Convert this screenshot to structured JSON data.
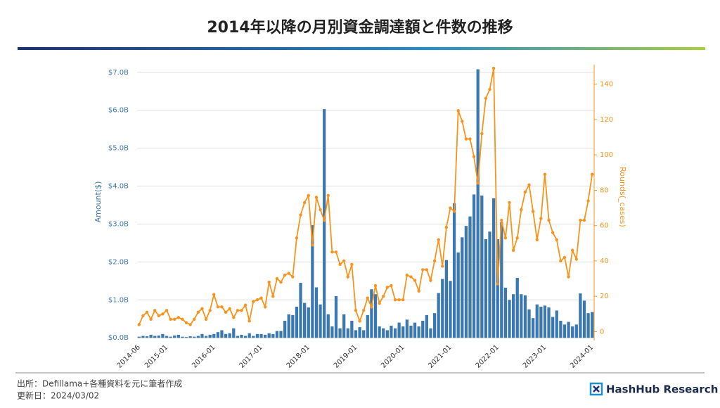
{
  "chart_data": {
    "type": "bar-line",
    "title": "2014年以降の月別資金調達額と件数の推移",
    "y_label": "Amount($)",
    "y2_label": "Rounds(_cases)",
    "categories": [
      "2014-06",
      null,
      null,
      null,
      null,
      null,
      null,
      "2015-01",
      null,
      null,
      null,
      null,
      null,
      null,
      null,
      null,
      null,
      null,
      null,
      "2016-01",
      null,
      null,
      null,
      null,
      null,
      null,
      null,
      null,
      null,
      null,
      null,
      "2017-01",
      null,
      null,
      null,
      null,
      null,
      null,
      null,
      null,
      null,
      null,
      null,
      "2018-01",
      null,
      null,
      null,
      null,
      null,
      null,
      null,
      null,
      null,
      null,
      null,
      "2019-01",
      null,
      null,
      null,
      null,
      null,
      null,
      null,
      null,
      null,
      null,
      null,
      "2020-01",
      null,
      null,
      null,
      null,
      null,
      null,
      null,
      null,
      null,
      null,
      null,
      "2021-01",
      null,
      null,
      null,
      null,
      null,
      null,
      null,
      null,
      null,
      null,
      null,
      "2022-01",
      null,
      null,
      null,
      null,
      null,
      null,
      null,
      null,
      null,
      null,
      null,
      "2023-01",
      null,
      null,
      null,
      null,
      null,
      null,
      null,
      null,
      null,
      null,
      null,
      "2024-01"
    ],
    "series": [
      {
        "color": "#3b78b1",
        "values": [
          0.03,
          0.05,
          0.04,
          0.08,
          0.05,
          0.06,
          0.1,
          0.05,
          0.03,
          0.06,
          0.08,
          0.03,
          0.02,
          0.04,
          0.03,
          0.05,
          0.1,
          0.05,
          0.08,
          0.1,
          0.15,
          0.2,
          0.1,
          0.12,
          0.25,
          0.05,
          0.08,
          0.05,
          0.12,
          0.05,
          0.1,
          0.1,
          0.08,
          0.12,
          0.1,
          0.18,
          0.18,
          0.45,
          0.62,
          0.6,
          0.82,
          1.45,
          0.92,
          0.8,
          2.97,
          1.33,
          0.88,
          6.03,
          0.62,
          0.3,
          1.1,
          0.25,
          0.62,
          0.25,
          0.45,
          0.2,
          0.28,
          0.2,
          0.6,
          1.28,
          1.15,
          0.3,
          0.25,
          0.2,
          0.32,
          0.25,
          0.4,
          0.3,
          0.48,
          0.32,
          0.4,
          0.3,
          0.45,
          0.6,
          0.25,
          0.65,
          1.18,
          1.55,
          2.05,
          1.5,
          3.55,
          2.25,
          2.65,
          2.95,
          3.2,
          3.78,
          7.08,
          3.75,
          2.6,
          2.8,
          3.68,
          2.6,
          3.05,
          1.32,
          1.0,
          1.15,
          1.58,
          1.15,
          1.12,
          0.75,
          0.52,
          0.88,
          0.82,
          0.85,
          0.8,
          0.55,
          0.72,
          0.45,
          0.35,
          0.42,
          0.3,
          0.35,
          1.17,
          0.98,
          0.65,
          0.68
        ]
      },
      {
        "color": "#f7941d",
        "axis": "y2",
        "values": [
          4,
          9,
          11,
          7,
          12,
          9,
          10,
          12,
          7,
          7,
          8,
          7,
          5,
          4,
          7,
          11,
          13,
          7,
          12,
          21,
          14,
          14,
          11,
          13,
          8,
          12,
          12,
          15,
          6,
          17,
          18,
          19,
          14,
          28,
          20,
          30,
          28,
          32,
          33,
          31,
          53,
          66,
          73,
          77,
          49,
          76,
          69,
          63,
          77,
          45,
          45,
          38,
          40,
          31,
          38,
          12,
          6,
          12,
          19,
          14,
          26,
          16,
          20,
          25,
          26,
          18,
          18,
          18,
          32,
          31,
          29,
          23,
          35,
          35,
          29,
          40,
          52,
          37,
          59,
          70,
          68,
          125,
          119,
          109,
          109,
          99,
          84,
          112,
          132,
          137,
          149,
          27,
          63,
          53,
          73,
          46,
          53,
          69,
          79,
          83,
          68,
          52,
          64,
          89,
          63,
          56,
          52,
          40,
          42,
          31,
          46,
          41,
          63,
          63,
          74,
          89
        ]
      }
    ],
    "ylim": [
      -0.07,
      7.2
    ],
    "yticks": [
      {
        "value": 0,
        "label": "$0.0B"
      },
      {
        "value": 1,
        "label": "$1.0B"
      },
      {
        "value": 2,
        "label": "$2.0B"
      },
      {
        "value": 3,
        "label": "$3.0B"
      },
      {
        "value": 4,
        "label": "$4.0B"
      },
      {
        "value": 5,
        "label": "$5.0B"
      },
      {
        "value": 6,
        "label": "$6.0B"
      },
      {
        "value": 7,
        "label": "$7.0B"
      }
    ],
    "y2lim": [
      -5,
      151
    ],
    "y2ticks": [
      0,
      20,
      40,
      60,
      80,
      100,
      120,
      140
    ],
    "grid": true
  },
  "footer": {
    "source": "出所：Defillama+各種資料を元に筆者作成",
    "updated": "更新日：2024/03/02"
  },
  "logo": "HashHub Research"
}
